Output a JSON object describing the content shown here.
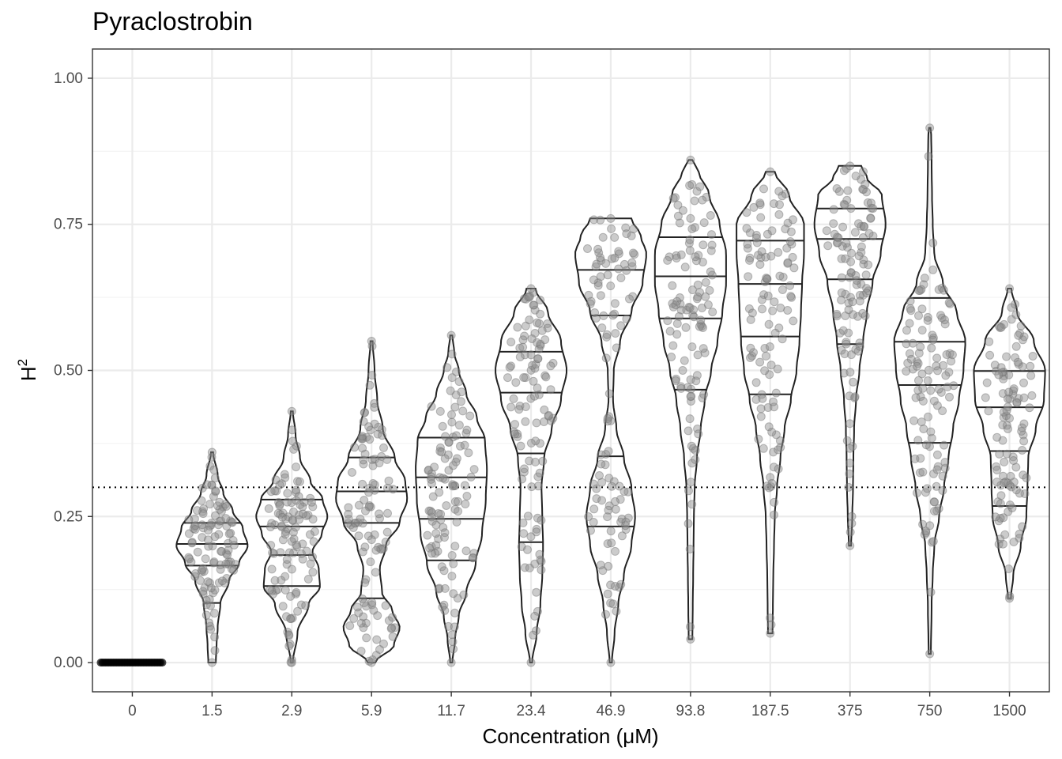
{
  "chart_data": {
    "type": "violin",
    "title": "Pyraclostrobin",
    "xlabel": "Concentration (μM)",
    "ylabel_base": "H",
    "ylabel_sup": "2",
    "ylim": [
      -0.05,
      1.05
    ],
    "yticks": [
      "0.00",
      "0.25",
      "0.50",
      "0.75",
      "1.00"
    ],
    "reference_line": 0.3,
    "grid": true,
    "categories": [
      "0",
      "1.5",
      "2.9",
      "5.9",
      "11.7",
      "23.4",
      "46.9",
      "93.8",
      "187.5",
      "375",
      "750",
      "1500"
    ],
    "groups": [
      {
        "label": "0",
        "min": 0,
        "max": 0,
        "quantiles": [],
        "violin": false
      },
      {
        "label": "1.5",
        "min": 0.0,
        "max": 0.36,
        "quantiles": [
          0.102,
          0.166,
          0.203,
          0.239
        ],
        "density": [
          [
            0.0,
            0.1
          ],
          [
            0.03,
            0.12
          ],
          [
            0.06,
            0.15
          ],
          [
            0.1,
            0.22
          ],
          [
            0.14,
            0.45
          ],
          [
            0.17,
            0.72
          ],
          [
            0.2,
            0.95
          ],
          [
            0.23,
            0.82
          ],
          [
            0.26,
            0.55
          ],
          [
            0.29,
            0.3
          ],
          [
            0.32,
            0.15
          ],
          [
            0.36,
            0.03
          ]
        ]
      },
      {
        "label": "2.9",
        "min": 0.0,
        "max": 0.43,
        "quantiles": [
          0.131,
          0.184,
          0.233,
          0.279
        ],
        "density": [
          [
            0.0,
            0.03
          ],
          [
            0.05,
            0.15
          ],
          [
            0.1,
            0.45
          ],
          [
            0.13,
            0.75
          ],
          [
            0.16,
            0.72
          ],
          [
            0.19,
            0.55
          ],
          [
            0.22,
            0.8
          ],
          [
            0.25,
            0.95
          ],
          [
            0.28,
            0.82
          ],
          [
            0.31,
            0.5
          ],
          [
            0.35,
            0.22
          ],
          [
            0.39,
            0.1
          ],
          [
            0.43,
            0.03
          ]
        ]
      },
      {
        "label": "5.9",
        "min": 0.0,
        "max": 0.55,
        "quantiles": [
          0.11,
          0.239,
          0.293,
          0.351
        ],
        "density": [
          [
            0.0,
            0.1
          ],
          [
            0.03,
            0.6
          ],
          [
            0.06,
            0.75
          ],
          [
            0.09,
            0.55
          ],
          [
            0.12,
            0.28
          ],
          [
            0.16,
            0.22
          ],
          [
            0.2,
            0.38
          ],
          [
            0.24,
            0.75
          ],
          [
            0.28,
            0.95
          ],
          [
            0.31,
            0.9
          ],
          [
            0.35,
            0.62
          ],
          [
            0.4,
            0.3
          ],
          [
            0.45,
            0.15
          ],
          [
            0.5,
            0.08
          ],
          [
            0.55,
            0.03
          ]
        ]
      },
      {
        "label": "11.7",
        "min": 0.0,
        "max": 0.56,
        "quantiles": [
          0.175,
          0.246,
          0.317,
          0.385
        ],
        "density": [
          [
            0.0,
            0.03
          ],
          [
            0.04,
            0.1
          ],
          [
            0.08,
            0.2
          ],
          [
            0.12,
            0.4
          ],
          [
            0.17,
            0.65
          ],
          [
            0.22,
            0.82
          ],
          [
            0.28,
            0.92
          ],
          [
            0.33,
            0.95
          ],
          [
            0.38,
            0.9
          ],
          [
            0.42,
            0.68
          ],
          [
            0.46,
            0.4
          ],
          [
            0.5,
            0.2
          ],
          [
            0.53,
            0.08
          ],
          [
            0.56,
            0.03
          ]
        ]
      },
      {
        "label": "23.4",
        "min": 0.0,
        "max": 0.64,
        "quantiles": [
          0.206,
          0.358,
          0.462,
          0.532
        ],
        "density": [
          [
            0.0,
            0.03
          ],
          [
            0.05,
            0.15
          ],
          [
            0.1,
            0.25
          ],
          [
            0.15,
            0.3
          ],
          [
            0.2,
            0.32
          ],
          [
            0.25,
            0.3
          ],
          [
            0.3,
            0.28
          ],
          [
            0.35,
            0.35
          ],
          [
            0.4,
            0.55
          ],
          [
            0.45,
            0.8
          ],
          [
            0.5,
            0.95
          ],
          [
            0.55,
            0.8
          ],
          [
            0.6,
            0.45
          ],
          [
            0.64,
            0.12
          ]
        ]
      },
      {
        "label": "46.9",
        "min": 0.0,
        "max": 0.76,
        "quantiles": [
          0.233,
          0.353,
          0.594,
          0.672
        ],
        "density": [
          [
            0.0,
            0.03
          ],
          [
            0.05,
            0.1
          ],
          [
            0.1,
            0.2
          ],
          [
            0.15,
            0.35
          ],
          [
            0.2,
            0.55
          ],
          [
            0.25,
            0.65
          ],
          [
            0.3,
            0.55
          ],
          [
            0.35,
            0.35
          ],
          [
            0.4,
            0.15
          ],
          [
            0.45,
            0.06
          ],
          [
            0.5,
            0.08
          ],
          [
            0.55,
            0.25
          ],
          [
            0.6,
            0.55
          ],
          [
            0.65,
            0.85
          ],
          [
            0.7,
            0.95
          ],
          [
            0.73,
            0.8
          ],
          [
            0.76,
            0.55
          ]
        ]
      },
      {
        "label": "93.8",
        "min": 0.04,
        "max": 0.86,
        "quantiles": [
          0.467,
          0.589,
          0.661,
          0.728
        ],
        "density": [
          [
            0.04,
            0.05
          ],
          [
            0.1,
            0.06
          ],
          [
            0.15,
            0.07
          ],
          [
            0.2,
            0.08
          ],
          [
            0.25,
            0.09
          ],
          [
            0.3,
            0.11
          ],
          [
            0.35,
            0.17
          ],
          [
            0.4,
            0.27
          ],
          [
            0.45,
            0.38
          ],
          [
            0.5,
            0.55
          ],
          [
            0.55,
            0.72
          ],
          [
            0.6,
            0.85
          ],
          [
            0.65,
            0.95
          ],
          [
            0.7,
            0.95
          ],
          [
            0.75,
            0.78
          ],
          [
            0.8,
            0.5
          ],
          [
            0.84,
            0.22
          ],
          [
            0.86,
            0.05
          ]
        ]
      },
      {
        "label": "187.5",
        "min": 0.05,
        "max": 0.84,
        "quantiles": [
          0.459,
          0.558,
          0.648,
          0.722
        ],
        "density": [
          [
            0.05,
            0.06
          ],
          [
            0.1,
            0.07
          ],
          [
            0.15,
            0.08
          ],
          [
            0.2,
            0.1
          ],
          [
            0.25,
            0.12
          ],
          [
            0.3,
            0.18
          ],
          [
            0.35,
            0.27
          ],
          [
            0.4,
            0.38
          ],
          [
            0.45,
            0.55
          ],
          [
            0.5,
            0.7
          ],
          [
            0.55,
            0.78
          ],
          [
            0.6,
            0.82
          ],
          [
            0.65,
            0.85
          ],
          [
            0.7,
            0.9
          ],
          [
            0.75,
            0.9
          ],
          [
            0.8,
            0.5
          ],
          [
            0.84,
            0.12
          ]
        ]
      },
      {
        "label": "375",
        "min": 0.2,
        "max": 0.85,
        "quantiles": [
          0.545,
          0.656,
          0.725,
          0.777
        ],
        "density": [
          [
            0.2,
            0.03
          ],
          [
            0.25,
            0.06
          ],
          [
            0.3,
            0.08
          ],
          [
            0.35,
            0.09
          ],
          [
            0.4,
            0.11
          ],
          [
            0.45,
            0.16
          ],
          [
            0.5,
            0.25
          ],
          [
            0.55,
            0.35
          ],
          [
            0.6,
            0.45
          ],
          [
            0.65,
            0.6
          ],
          [
            0.7,
            0.82
          ],
          [
            0.75,
            0.95
          ],
          [
            0.8,
            0.85
          ],
          [
            0.83,
            0.45
          ],
          [
            0.85,
            0.3
          ]
        ]
      },
      {
        "label": "750",
        "min": 0.015,
        "max": 0.915,
        "quantiles": [
          0.376,
          0.475,
          0.549,
          0.624
        ],
        "density": [
          [
            0.015,
            0.03
          ],
          [
            0.1,
            0.05
          ],
          [
            0.15,
            0.08
          ],
          [
            0.2,
            0.12
          ],
          [
            0.25,
            0.25
          ],
          [
            0.3,
            0.38
          ],
          [
            0.35,
            0.5
          ],
          [
            0.4,
            0.62
          ],
          [
            0.45,
            0.78
          ],
          [
            0.5,
            0.9
          ],
          [
            0.55,
            0.95
          ],
          [
            0.6,
            0.72
          ],
          [
            0.65,
            0.35
          ],
          [
            0.7,
            0.12
          ],
          [
            0.75,
            0.08
          ],
          [
            0.8,
            0.06
          ],
          [
            0.85,
            0.05
          ],
          [
            0.9,
            0.04
          ],
          [
            0.915,
            0.02
          ]
        ]
      },
      {
        "label": "1500",
        "min": 0.11,
        "max": 0.64,
        "quantiles": [
          0.268,
          0.362,
          0.437,
          0.499
        ],
        "density": [
          [
            0.11,
            0.04
          ],
          [
            0.15,
            0.1
          ],
          [
            0.2,
            0.3
          ],
          [
            0.25,
            0.45
          ],
          [
            0.3,
            0.48
          ],
          [
            0.35,
            0.5
          ],
          [
            0.4,
            0.7
          ],
          [
            0.45,
            0.92
          ],
          [
            0.5,
            0.95
          ],
          [
            0.55,
            0.65
          ],
          [
            0.6,
            0.2
          ],
          [
            0.64,
            0.05
          ]
        ]
      }
    ]
  }
}
